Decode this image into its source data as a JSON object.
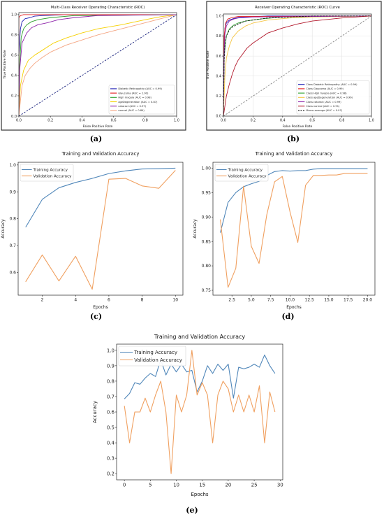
{
  "chart_data": [
    {
      "id": "a",
      "type": "line",
      "caption": "(a)",
      "title": "Multi-Class Receiver Operating Characteristic (ROC)",
      "xlabel": "False Positive Rate",
      "ylabel": "True Positive Rate",
      "xlim": [
        0,
        1
      ],
      "ylim": [
        0,
        1.02
      ],
      "xticks": [
        0,
        0.2,
        0.4,
        0.6,
        0.8,
        1.0
      ],
      "xtick_labels": [
        "0.0",
        "0.2",
        "0.4",
        "0.6",
        "0.8",
        "1.0"
      ],
      "yticks": [
        0,
        0.2,
        0.4,
        0.6,
        0.8,
        1.0
      ],
      "ytick_labels": [
        "0.0",
        "0.2",
        "0.4",
        "0.6",
        "0.8",
        "1.0"
      ],
      "grid": false,
      "legend": "lower-right",
      "series": [
        {
          "name": "Diabetic Retinopathy (AUC = 0.99)",
          "color": "#1f1fb4",
          "dashed": false,
          "x": [
            0,
            0,
            0.01,
            0.02,
            0.04,
            0.07,
            0.1,
            0.15,
            0.3,
            1
          ],
          "y": [
            0,
            0.6,
            0.86,
            0.93,
            0.96,
            0.97,
            0.985,
            0.99,
            1.0,
            1.0
          ]
        },
        {
          "name": "Glaucoma (AUC = 1.00)",
          "color": "#e41a1c",
          "dashed": false,
          "x": [
            0,
            0,
            0.01,
            0.03,
            1
          ],
          "y": [
            0,
            0.97,
            0.99,
            1.0,
            1.0
          ]
        },
        {
          "name": "High myopia (AUC = 0.98)",
          "color": "#2ca02c",
          "dashed": false,
          "x": [
            0,
            0.005,
            0.015,
            0.03,
            0.05,
            0.08,
            0.12,
            0.2,
            0.35,
            1
          ],
          "y": [
            0,
            0.5,
            0.78,
            0.86,
            0.9,
            0.93,
            0.95,
            0.97,
            0.99,
            1.0
          ]
        },
        {
          "name": "ageDegeneration (AUC = 0.87)",
          "color": "#f5d000",
          "dashed": false,
          "x": [
            0,
            0.01,
            0.03,
            0.06,
            0.1,
            0.15,
            0.22,
            0.3,
            0.4,
            0.5,
            0.65,
            0.8,
            0.9,
            1
          ],
          "y": [
            0,
            0.3,
            0.45,
            0.55,
            0.6,
            0.65,
            0.72,
            0.77,
            0.82,
            0.86,
            0.9,
            0.95,
            0.98,
            1.0
          ]
        },
        {
          "name": "cataract (AUC = 0.97)",
          "color": "#8e24aa",
          "dashed": false,
          "x": [
            0,
            0.005,
            0.02,
            0.05,
            0.08,
            0.12,
            0.18,
            0.25,
            0.35,
            0.5,
            1
          ],
          "y": [
            0,
            0.45,
            0.72,
            0.82,
            0.87,
            0.9,
            0.92,
            0.95,
            0.97,
            0.99,
            1.0
          ]
        },
        {
          "name": "normal (AUC = 0.84)",
          "color": "#f4a582",
          "dashed": false,
          "x": [
            0,
            0.01,
            0.02,
            0.04,
            0.07,
            0.1,
            0.15,
            0.2,
            0.3,
            0.4,
            0.5,
            0.6,
            0.7,
            0.8,
            0.9,
            1
          ],
          "y": [
            0,
            0.15,
            0.3,
            0.4,
            0.47,
            0.52,
            0.58,
            0.63,
            0.7,
            0.75,
            0.8,
            0.84,
            0.88,
            0.92,
            0.96,
            1.0
          ]
        },
        {
          "name": "",
          "color": "#1a237e",
          "dashed": true,
          "x": [
            0,
            1
          ],
          "y": [
            0,
            1
          ]
        }
      ]
    },
    {
      "id": "b",
      "type": "line",
      "caption": "(b)",
      "title": "Receiver Operating Characteristic (ROC) Curve",
      "xlabel": "False Positive Rate",
      "ylabel": "True Positive Rate",
      "xlim": [
        0,
        1
      ],
      "ylim": [
        0,
        1.02
      ],
      "xticks": [
        0,
        0.2,
        0.4,
        0.6,
        0.8,
        1.0
      ],
      "xtick_labels": [
        "0.0",
        "0.2",
        "0.4",
        "0.6",
        "0.8",
        "1.0"
      ],
      "yticks": [
        0,
        0.2,
        0.4,
        0.6,
        0.8,
        1.0
      ],
      "ytick_labels": [
        "0.0",
        "0.2",
        "0.4",
        "0.6",
        "0.8",
        "1.0"
      ],
      "grid": true,
      "legend": "lower-right",
      "series": [
        {
          "name": "Class Diabetic Retinopathy (AUC = 0.99)",
          "color": "#1f1fb4",
          "dashed": false,
          "x": [
            0,
            0.005,
            0.01,
            0.02,
            0.04,
            0.07,
            0.1,
            0.15,
            0.3,
            1
          ],
          "y": [
            0,
            0.7,
            0.88,
            0.93,
            0.96,
            0.975,
            0.985,
            0.99,
            1.0,
            1.0
          ]
        },
        {
          "name": "Class Glaucoma (AUC = 0.99)",
          "color": "#e41a1c",
          "dashed": false,
          "x": [
            0,
            0.005,
            0.015,
            0.03,
            0.06,
            0.1,
            1
          ],
          "y": [
            0,
            0.8,
            0.93,
            0.97,
            0.985,
            0.995,
            1.0
          ]
        },
        {
          "name": "Class High myopia (AUC = 0.98)",
          "color": "#2ca02c",
          "dashed": false,
          "x": [
            0,
            0.005,
            0.02,
            0.04,
            0.07,
            0.1,
            0.15,
            0.25,
            0.4,
            1
          ],
          "y": [
            0,
            0.6,
            0.8,
            0.87,
            0.91,
            0.93,
            0.95,
            0.97,
            0.99,
            1.0
          ]
        },
        {
          "name": "Class ageDegeneration (AUC = 0.96)",
          "color": "#f5c542",
          "dashed": false,
          "x": [
            0,
            0.01,
            0.02,
            0.04,
            0.06,
            0.1,
            0.15,
            0.2,
            0.3,
            0.45,
            0.6,
            1
          ],
          "y": [
            0,
            0.4,
            0.58,
            0.7,
            0.78,
            0.85,
            0.9,
            0.93,
            0.96,
            0.98,
            0.99,
            1.0
          ]
        },
        {
          "name": "Class cataract (AUC = 0.99)",
          "color": "#8e24aa",
          "dashed": false,
          "x": [
            0,
            0.005,
            0.01,
            0.02,
            0.04,
            0.07,
            0.1,
            0.2,
            1
          ],
          "y": [
            0,
            0.6,
            0.82,
            0.9,
            0.95,
            0.97,
            0.98,
            0.99,
            1.0
          ]
        },
        {
          "name": "Class normal (AUC = 0.91)",
          "color": "#b2182b",
          "dashed": false,
          "x": [
            0,
            0.01,
            0.02,
            0.04,
            0.06,
            0.08,
            0.1,
            0.13,
            0.16,
            0.2,
            0.25,
            0.3,
            0.4,
            0.5,
            0.6,
            0.8,
            1
          ],
          "y": [
            0,
            0.1,
            0.2,
            0.32,
            0.42,
            0.5,
            0.56,
            0.62,
            0.68,
            0.73,
            0.78,
            0.83,
            0.88,
            0.92,
            0.95,
            0.98,
            1.0
          ]
        },
        {
          "name": "Macro-average (AUC = 0.97)",
          "color": "#111111",
          "dashed": true,
          "x": [
            0,
            0.005,
            0.01,
            0.02,
            0.04,
            0.06,
            0.1,
            0.15,
            0.2,
            0.3,
            0.45,
            0.6,
            1
          ],
          "y": [
            0,
            0.55,
            0.7,
            0.8,
            0.86,
            0.89,
            0.92,
            0.95,
            0.96,
            0.98,
            0.99,
            1.0,
            1.0
          ]
        },
        {
          "name": "",
          "color": "#888888",
          "dashed": true,
          "x": [
            0,
            1
          ],
          "y": [
            0,
            1
          ]
        }
      ]
    },
    {
      "id": "c",
      "type": "line",
      "caption": "(c)",
      "title": "Training and Validation Accuracy",
      "xlabel": "Epochs",
      "ylabel": "Accuracy",
      "xlim": [
        0.55,
        10.45
      ],
      "ylim": [
        0.515,
        1.01
      ],
      "xticks": [
        2,
        4,
        6,
        8,
        10
      ],
      "xtick_labels": [
        "2",
        "4",
        "6",
        "8",
        "10"
      ],
      "yticks": [
        0.6,
        0.7,
        0.8,
        0.9,
        1.0
      ],
      "ytick_labels": [
        "0.6",
        "0.7",
        "0.8",
        "0.9",
        "1.0"
      ],
      "grid": false,
      "legend": "top-left",
      "series": [
        {
          "name": "Training Accuracy",
          "color": "#4f86b9",
          "dashed": false,
          "x": [
            1,
            2,
            3,
            4,
            5,
            6,
            7,
            8,
            9,
            10
          ],
          "y": [
            0.768,
            0.872,
            0.915,
            0.935,
            0.95,
            0.968,
            0.978,
            0.985,
            0.986,
            0.988
          ]
        },
        {
          "name": "Validation Accuracy",
          "color": "#f0a060",
          "dashed": false,
          "x": [
            1,
            2,
            3,
            4,
            5,
            6,
            7,
            8,
            9,
            10
          ],
          "y": [
            0.565,
            0.665,
            0.568,
            0.66,
            0.537,
            0.947,
            0.95,
            0.922,
            0.913,
            0.98
          ]
        }
      ]
    },
    {
      "id": "d",
      "type": "line",
      "caption": "(d)",
      "title": "Training and Validation Accuracy",
      "xlabel": "Epochs",
      "ylabel": "Accuracy",
      "xlim": [
        0.05,
        20.95
      ],
      "ylim": [
        0.74,
        1.012
      ],
      "xticks": [
        2.5,
        5,
        7.5,
        10,
        12.5,
        15,
        17.5,
        20
      ],
      "xtick_labels": [
        "2.5",
        "5.0",
        "7.5",
        "10.0",
        "12.5",
        "15.0",
        "17.5",
        "20.0"
      ],
      "yticks": [
        0.75,
        0.8,
        0.85,
        0.9,
        0.95,
        1.0
      ],
      "ytick_labels": [
        "0.75",
        "0.80",
        "0.85",
        "0.90",
        "0.95",
        "1.00"
      ],
      "grid": false,
      "legend": "top-left",
      "series": [
        {
          "name": "Training Accuracy",
          "color": "#4f86b9",
          "dashed": false,
          "x": [
            1,
            2,
            3,
            4,
            5,
            6,
            7,
            8,
            9,
            10,
            11,
            12,
            13,
            14,
            15,
            16,
            17,
            18,
            19,
            20
          ],
          "y": [
            0.868,
            0.93,
            0.95,
            0.962,
            0.968,
            0.973,
            0.985,
            0.993,
            0.995,
            0.994,
            0.995,
            0.995,
            0.998,
            0.999,
            0.999,
            0.999,
            0.999,
            0.999,
            0.999,
            0.999
          ]
        },
        {
          "name": "Validation Accuracy",
          "color": "#f0a060",
          "dashed": false,
          "x": [
            1,
            2,
            3,
            4,
            5,
            6,
            7,
            8,
            9,
            10,
            11,
            12,
            13,
            14,
            15,
            16,
            17,
            18,
            19,
            20
          ],
          "y": [
            0.895,
            0.756,
            0.795,
            0.963,
            0.84,
            0.805,
            0.905,
            0.972,
            0.983,
            0.91,
            0.848,
            0.965,
            0.985,
            0.985,
            0.986,
            0.986,
            0.989,
            0.989,
            0.989,
            0.989
          ]
        }
      ]
    },
    {
      "id": "e",
      "type": "line",
      "caption": "(e)",
      "title": "Training and Validation Accuracy",
      "xlabel": "Epochs",
      "ylabel": "Accuracy",
      "xlim": [
        -1.5,
        30.5
      ],
      "ylim": [
        0.16,
        1.04
      ],
      "xticks": [
        0,
        5,
        10,
        15,
        20,
        25,
        30
      ],
      "xtick_labels": [
        "0",
        "5",
        "10",
        "15",
        "20",
        "25",
        "30"
      ],
      "yticks": [
        0.2,
        0.3,
        0.4,
        0.5,
        0.6,
        0.7,
        0.8,
        0.9,
        1.0
      ],
      "ytick_labels": [
        "0.2",
        "0.3",
        "0.4",
        "0.5",
        "0.6",
        "0.7",
        "0.8",
        "0.9",
        "1.0"
      ],
      "grid": false,
      "legend": "top-left",
      "series": [
        {
          "name": "Training Accuracy",
          "color": "#4f86b9",
          "dashed": false,
          "x": [
            0,
            1,
            2,
            3,
            4,
            5,
            6,
            7,
            8,
            9,
            10,
            11,
            12,
            13,
            14,
            15,
            16,
            17,
            18,
            19,
            20,
            21,
            22,
            23,
            24,
            25,
            26,
            27,
            28,
            29
          ],
          "y": [
            0.685,
            0.72,
            0.79,
            0.78,
            0.82,
            0.85,
            0.83,
            0.94,
            0.84,
            0.91,
            0.86,
            0.91,
            0.86,
            0.87,
            0.73,
            0.8,
            0.9,
            0.85,
            0.91,
            0.87,
            0.91,
            0.69,
            0.89,
            0.88,
            0.89,
            0.91,
            0.89,
            0.97,
            0.9,
            0.85
          ]
        },
        {
          "name": "Validation Accuracy",
          "color": "#f0a060",
          "dashed": false,
          "x": [
            0,
            1,
            2,
            3,
            4,
            5,
            6,
            7,
            8,
            9,
            10,
            11,
            12,
            13,
            14,
            15,
            16,
            17,
            18,
            19,
            20,
            21,
            22,
            23,
            24,
            25,
            26,
            27,
            28,
            29
          ],
          "y": [
            0.64,
            0.4,
            0.6,
            0.6,
            0.69,
            0.6,
            0.71,
            0.8,
            0.6,
            0.2,
            0.71,
            0.6,
            0.71,
            1.0,
            0.71,
            0.79,
            0.71,
            0.4,
            0.71,
            0.8,
            0.75,
            0.6,
            0.71,
            0.6,
            0.71,
            0.6,
            0.77,
            0.4,
            0.73,
            0.6
          ]
        }
      ]
    }
  ]
}
